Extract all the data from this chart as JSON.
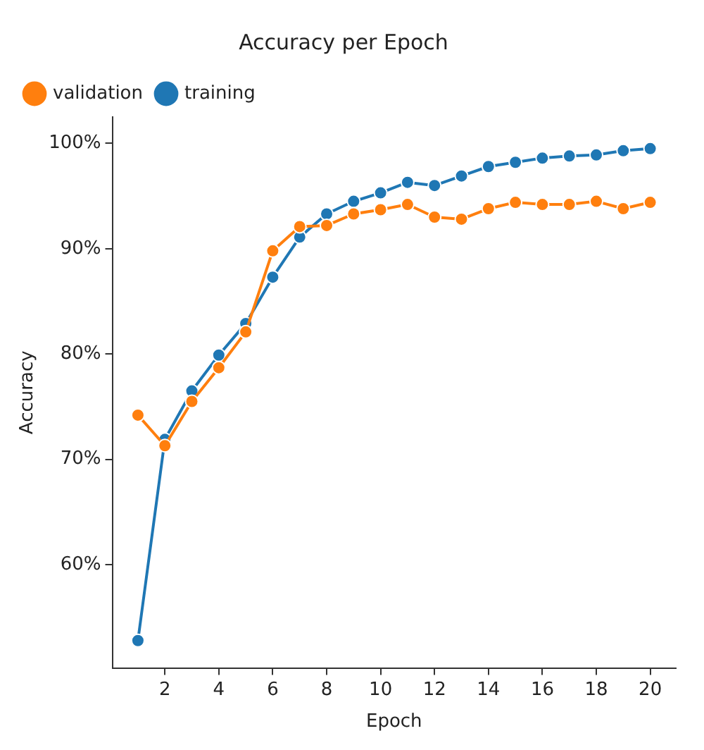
{
  "chart_data": {
    "type": "line",
    "title": "Accuracy per Epoch",
    "xlabel": "Epoch",
    "ylabel": "Accuracy",
    "x": [
      1,
      2,
      3,
      4,
      5,
      6,
      7,
      8,
      9,
      10,
      11,
      12,
      13,
      14,
      15,
      16,
      17,
      18,
      19,
      20
    ],
    "series": [
      {
        "name": "training",
        "color": "#1f77b4",
        "values": [
          52.8,
          71.9,
          76.5,
          79.9,
          82.9,
          87.3,
          91.1,
          93.3,
          94.5,
          95.3,
          96.3,
          96.0,
          96.9,
          97.8,
          98.2,
          98.6,
          98.8,
          98.9,
          99.3,
          99.5
        ]
      },
      {
        "name": "validation",
        "color": "#ff7f0e",
        "values": [
          74.2,
          71.3,
          75.5,
          78.7,
          82.1,
          89.8,
          92.1,
          92.2,
          93.3,
          93.7,
          94.2,
          93.0,
          92.8,
          93.8,
          94.4,
          94.2,
          94.2,
          94.5,
          93.8,
          94.4
        ]
      }
    ],
    "xlim": [
      0.05,
      20.95
    ],
    "xticks": [
      2,
      4,
      6,
      8,
      10,
      12,
      14,
      16,
      18,
      20
    ],
    "ylim": [
      50.2,
      102.5
    ],
    "yticks": [
      {
        "value": 60,
        "label": "60%"
      },
      {
        "value": 70,
        "label": "70%"
      },
      {
        "value": 80,
        "label": "80%"
      },
      {
        "value": 90,
        "label": "90%"
      },
      {
        "value": 100,
        "label": "100%"
      }
    ],
    "grid": false,
    "legend": "top left",
    "marker": "circle",
    "line_style": "solid"
  }
}
